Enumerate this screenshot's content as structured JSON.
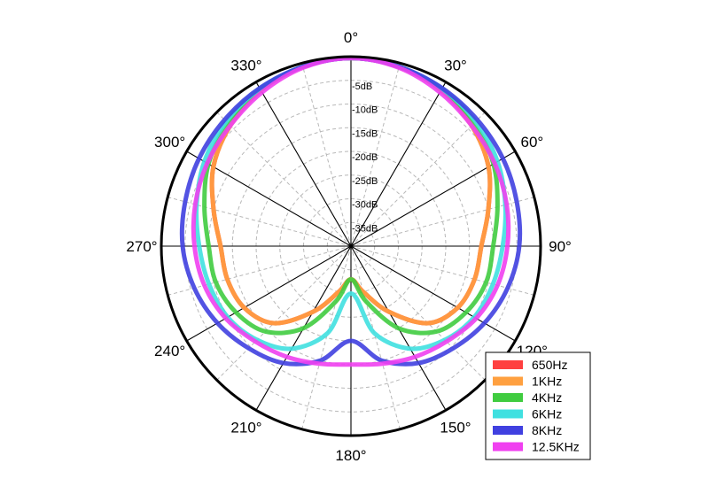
{
  "chart_data": {
    "type": "polar",
    "angle_direction": "clockwise",
    "zero_position": "top",
    "angle_labels": [
      "0°",
      "30°",
      "60°",
      "90°",
      "120°",
      "150°",
      "180°",
      "210°",
      "240°",
      "270°",
      "300°",
      "330°"
    ],
    "radial_labels": [
      "-5dB",
      "-10dB",
      "-15dB",
      "-20dB",
      "-25dB",
      "-30dB",
      "-35dB"
    ],
    "radial_range_db": [
      -40,
      0
    ],
    "grid": true,
    "legend_position": "bottom-right",
    "angles_deg": [
      0,
      15,
      30,
      45,
      60,
      75,
      90,
      105,
      120,
      135,
      150,
      165,
      180,
      195,
      210,
      225,
      240,
      255,
      270,
      285,
      300,
      315,
      330,
      345,
      360
    ],
    "series": [
      {
        "name": "650Hz",
        "color": "#ff4040",
        "values": [
          -0.3,
          -0.8,
          -2.0,
          -4.0,
          -6.5,
          -10.0,
          -12.5,
          -13.0,
          -14.0,
          -17.0,
          -24.0,
          -30.0,
          -33.0,
          -30.0,
          -24.0,
          -17.0,
          -14.0,
          -13.0,
          -12.5,
          -10.0,
          -6.5,
          -4.0,
          -2.0,
          -0.8,
          -0.3
        ]
      },
      {
        "name": "1KHz",
        "color": "#ffa040",
        "values": [
          -0.3,
          -0.8,
          -2.0,
          -4.0,
          -6.5,
          -10.0,
          -12.5,
          -13.0,
          -14.0,
          -17.0,
          -24.0,
          -30.0,
          -33.0,
          -30.0,
          -24.0,
          -17.0,
          -14.0,
          -13.0,
          -12.5,
          -10.0,
          -6.5,
          -4.0,
          -2.0,
          -0.8,
          -0.3
        ]
      },
      {
        "name": "4KHz",
        "color": "#40cc40",
        "values": [
          -0.3,
          -0.8,
          -1.8,
          -3.3,
          -5.3,
          -8.0,
          -10.0,
          -10.5,
          -12.0,
          -14.5,
          -20.0,
          -28.0,
          -33.0,
          -28.0,
          -20.0,
          -14.5,
          -12.0,
          -10.5,
          -10.0,
          -8.0,
          -5.3,
          -3.3,
          -1.8,
          -0.8,
          -0.3
        ]
      },
      {
        "name": "6KHz",
        "color": "#40e0e0",
        "values": [
          -0.3,
          -0.8,
          -1.6,
          -2.8,
          -4.3,
          -6.3,
          -8.0,
          -9.0,
          -10.0,
          -12.0,
          -15.0,
          -21.0,
          -30.0,
          -21.0,
          -15.0,
          -12.0,
          -10.0,
          -9.0,
          -8.0,
          -6.3,
          -4.3,
          -2.8,
          -1.6,
          -0.8,
          -0.3
        ]
      },
      {
        "name": "8KHz",
        "color": "#4040e0",
        "values": [
          -0.3,
          -0.8,
          -1.5,
          -2.3,
          -3.0,
          -3.8,
          -4.5,
          -5.8,
          -7.5,
          -9.5,
          -11.5,
          -15.0,
          -20.0,
          -15.0,
          -11.5,
          -9.5,
          -7.5,
          -5.8,
          -4.5,
          -3.8,
          -3.0,
          -2.3,
          -1.5,
          -0.8,
          -0.3
        ]
      },
      {
        "name": "12.5KHz",
        "color": "#f040f0",
        "values": [
          -0.3,
          -1.0,
          -2.5,
          -4.0,
          -5.0,
          -6.0,
          -7.0,
          -8.0,
          -9.5,
          -11.5,
          -13.0,
          -14.3,
          -15.0,
          -14.3,
          -13.0,
          -11.5,
          -9.5,
          -8.0,
          -7.0,
          -6.0,
          -5.0,
          -4.0,
          -2.5,
          -1.0,
          -0.3
        ]
      }
    ]
  }
}
